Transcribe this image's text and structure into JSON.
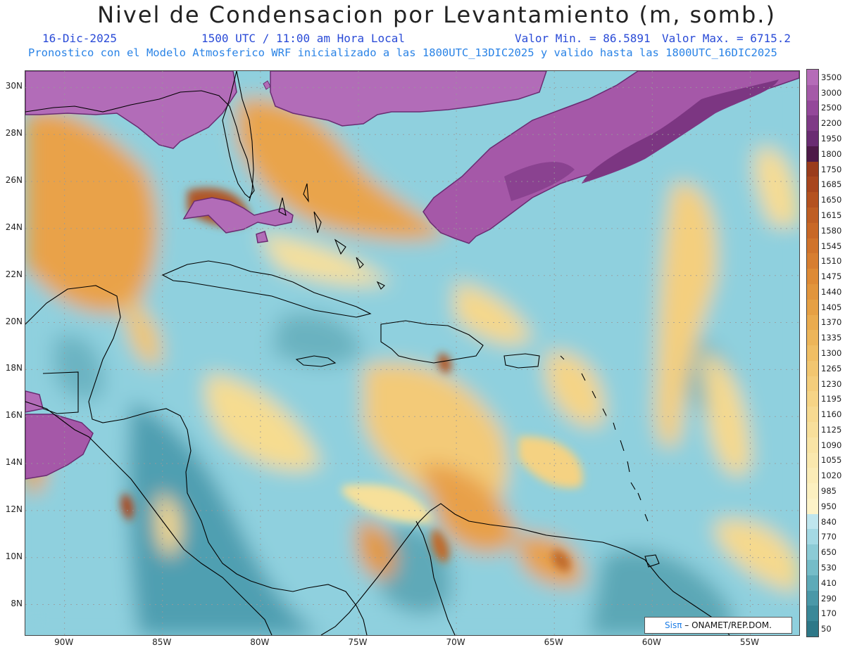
{
  "header": {
    "title": "Nivel de Condensacion por Levantamiento (m, somb.)",
    "date": "16-Dic-2025",
    "time": "1500 UTC / 11:00 am Hora Local",
    "min_value": "Valor Min. = 86.5891",
    "max_value": "Valor Max. = 6715.2",
    "model_info": "Pronostico con el Modelo Atmosferico WRF inicializado a las 1800UTC_13DIC2025 y valido hasta las  1800UTC_16DIC2025"
  },
  "map": {
    "lat_labels": [
      "30N",
      "28N",
      "26N",
      "24N",
      "22N",
      "20N",
      "18N",
      "16N",
      "14N",
      "12N",
      "10N",
      "8N"
    ],
    "lat_values": [
      30,
      28,
      26,
      24,
      22,
      20,
      18,
      16,
      14,
      12,
      10,
      8
    ],
    "lon_labels": [
      "90W",
      "85W",
      "80W",
      "75W",
      "70W",
      "65W",
      "60W",
      "55W"
    ],
    "lon_values": [
      -90,
      -85,
      -80,
      -75,
      -70,
      -65,
      -60,
      -55
    ],
    "extent": {
      "lon_min": -92,
      "lon_max": -52.5,
      "lat_min": 6.7,
      "lat_max": 30.7
    }
  },
  "colorbar": {
    "labels": [
      "3500",
      "3000",
      "2500",
      "2200",
      "1950",
      "1800",
      "1750",
      "1685",
      "1650",
      "1615",
      "1580",
      "1545",
      "1510",
      "1475",
      "1440",
      "1405",
      "1370",
      "1335",
      "1300",
      "1265",
      "1230",
      "1195",
      "1160",
      "1125",
      "1090",
      "1055",
      "1020",
      "985",
      "950",
      "840",
      "770",
      "650",
      "530",
      "410",
      "290",
      "170",
      "50"
    ],
    "colors": [
      "#b56cb8",
      "#a55aa8",
      "#94489a",
      "#7f3a86",
      "#6a2c72",
      "#4e1a48",
      "#9a3c1c",
      "#a8461e",
      "#b45220",
      "#be5e24",
      "#c86826",
      "#d0732b",
      "#d77e30",
      "#de8a35",
      "#e2953c",
      "#e6a044",
      "#eaab4e",
      "#edb559",
      "#f0be64",
      "#f2c670",
      "#f4cd7b",
      "#f6d486",
      "#f7da91",
      "#f8df9b",
      "#f9e4a5",
      "#fae8ae",
      "#fbecb7",
      "#fcf0c0",
      "#fdf3c8",
      "#bfe6ee",
      "#a4d9e4",
      "#8ccbd6",
      "#75bcc8",
      "#5eaab8",
      "#4a98a8",
      "#3a8898",
      "#2e7888"
    ]
  },
  "credit": {
    "system": "Sisπ",
    "org": " – ONAMET/REP.DOM."
  }
}
